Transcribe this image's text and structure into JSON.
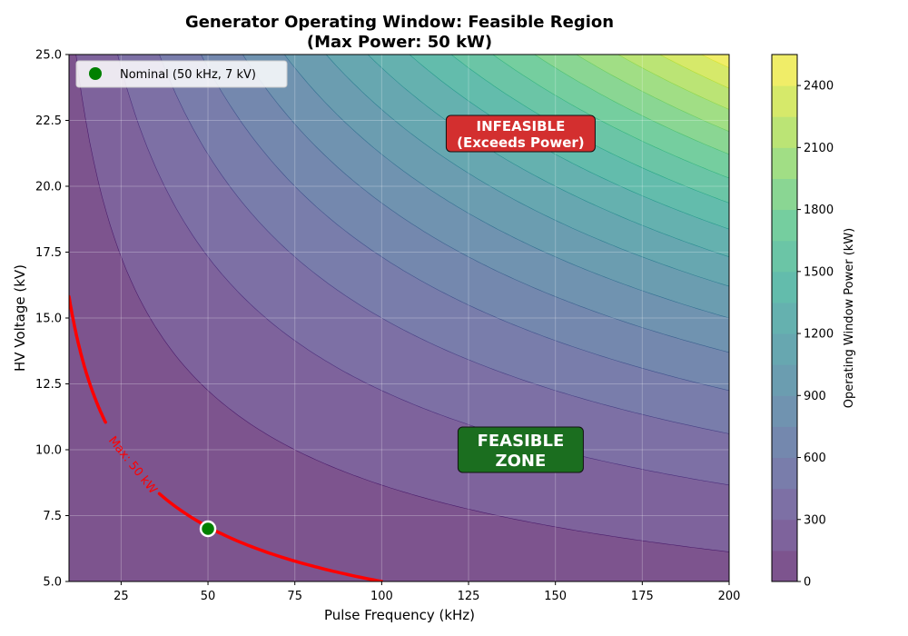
{
  "chart_data": {
    "type": "heatmap",
    "title_line1": "Generator Operating Window: Feasible Region",
    "title_line2": "(Max Power: 50 kW)",
    "xlabel": "Pulse Frequency (kHz)",
    "ylabel": "HV Voltage (kV)",
    "xlim": [
      10,
      200
    ],
    "ylim": [
      5,
      25
    ],
    "x_ticks": [
      25,
      50,
      75,
      100,
      125,
      150,
      175,
      200
    ],
    "y_ticks": [
      5.0,
      7.5,
      10.0,
      12.5,
      15.0,
      17.5,
      20.0,
      22.5,
      25.0
    ],
    "y_tick_labels": [
      "5.0",
      "7.5",
      "10.0",
      "12.5",
      "15.0",
      "17.5",
      "20.0",
      "22.5",
      "25.0"
    ],
    "grid": true,
    "surface": "power = frequency × voltage² / 50",
    "contour_step": 150,
    "contour_max": 2550,
    "colormap": "viridis",
    "colormap_alpha": 0.7,
    "colorbar": {
      "label": "Operating Window Power (kW)",
      "ticks": [
        0,
        300,
        600,
        900,
        1200,
        1500,
        1800,
        2100,
        2400
      ],
      "range": [
        0,
        2550
      ]
    },
    "max_power_line": {
      "label": "Max: 50 kW",
      "power_kW": 50,
      "color": "#ff0000"
    },
    "nominal_point": {
      "x": 50,
      "y": 7,
      "legend": "Nominal (50 kHz, 7 kV)",
      "color": "#008000"
    },
    "annotations": [
      {
        "id": "infeasible",
        "line1": "INFEASIBLE",
        "line2": "(Exceeds Power)",
        "x": 140,
        "y": 22,
        "color": "#d32f2f"
      },
      {
        "id": "feasible",
        "line1": "FEASIBLE",
        "line2": "ZONE",
        "x": 140,
        "y": 10,
        "color": "#1b6e1f"
      }
    ],
    "legend_position": "upper-left"
  }
}
